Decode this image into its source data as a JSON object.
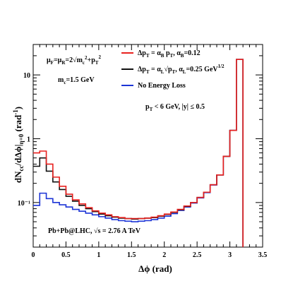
{
  "chart_data": {
    "type": "line",
    "step": true,
    "xlabel": "Δϕ (rad)",
    "ylabel": "dN_cc / dΔϕ|_{η=0} (rad^{-1})",
    "xlim": [
      0,
      3.5
    ],
    "ylim": [
      0.02,
      30
    ],
    "yscale": "log",
    "grid": false,
    "legend_position": "top-right",
    "x_ticks": [
      0,
      0.5,
      1,
      1.5,
      2,
      2.5,
      3,
      3.5
    ],
    "x_tick_labels": [
      "0",
      "0.5",
      "1",
      "1.5",
      "2",
      "2.5",
      "3",
      "3.5"
    ],
    "y_ticks": [
      0.1,
      1,
      10
    ],
    "y_tick_labels": [
      "10⁻¹",
      "1",
      "10"
    ],
    "bin_edges": [
      0,
      0.1,
      0.2,
      0.3,
      0.4,
      0.5,
      0.6,
      0.7,
      0.8,
      0.9,
      1.0,
      1.1,
      1.2,
      1.3,
      1.4,
      1.5,
      1.6,
      1.7,
      1.8,
      1.9,
      2.0,
      2.1,
      2.2,
      2.3,
      2.4,
      2.5,
      2.6,
      2.7,
      2.8,
      2.9,
      3.0,
      3.1,
      3.2
    ],
    "series": [
      {
        "name": "Δp_T = α_B p_T, α_B=0.12",
        "color": "#e8211f",
        "values": [
          0.6,
          0.64,
          0.4,
          0.25,
          0.18,
          0.135,
          0.11,
          0.095,
          0.083,
          0.074,
          0.068,
          0.064,
          0.06,
          0.058,
          0.056,
          0.056,
          0.056,
          0.057,
          0.059,
          0.062,
          0.066,
          0.071,
          0.078,
          0.088,
          0.1,
          0.12,
          0.145,
          0.19,
          0.27,
          0.53,
          1.35,
          17.5
        ]
      },
      {
        "name": "Δp_T = α_L √p_T, α_L=0.25 GeV^{1/2}",
        "color": "#111111",
        "values": [
          0.37,
          0.5,
          0.31,
          0.21,
          0.16,
          0.125,
          0.105,
          0.09,
          0.08,
          0.072,
          0.066,
          0.062,
          0.059,
          0.057,
          0.056,
          0.055,
          0.056,
          0.057,
          0.058,
          0.061,
          0.065,
          0.07,
          0.077,
          0.087,
          0.1,
          0.12,
          0.145,
          0.19,
          0.27,
          0.53,
          1.35,
          17.5
        ]
      },
      {
        "name": "No Energy Loss",
        "color": "#1c34d6",
        "values": [
          0.09,
          0.14,
          0.115,
          0.1,
          0.092,
          0.085,
          0.078,
          0.073,
          0.068,
          0.064,
          0.06,
          0.057,
          0.054,
          0.052,
          0.051,
          0.05,
          0.051,
          0.052,
          0.054,
          0.057,
          0.061,
          0.067,
          0.075,
          0.085,
          0.098,
          0.118,
          0.143,
          0.188,
          0.27,
          0.53,
          1.35,
          17.5
        ]
      }
    ],
    "annotations": {
      "scale_line1": "μ_F=μ_R=2√m_c²+p_T²",
      "scale_line2": "m_c=1.5 GeV",
      "cuts": "p_T < 6 GeV, |y| ≤ 0.5",
      "system": "Pb+Pb@LHC, √s = 2.76 A TeV"
    }
  }
}
